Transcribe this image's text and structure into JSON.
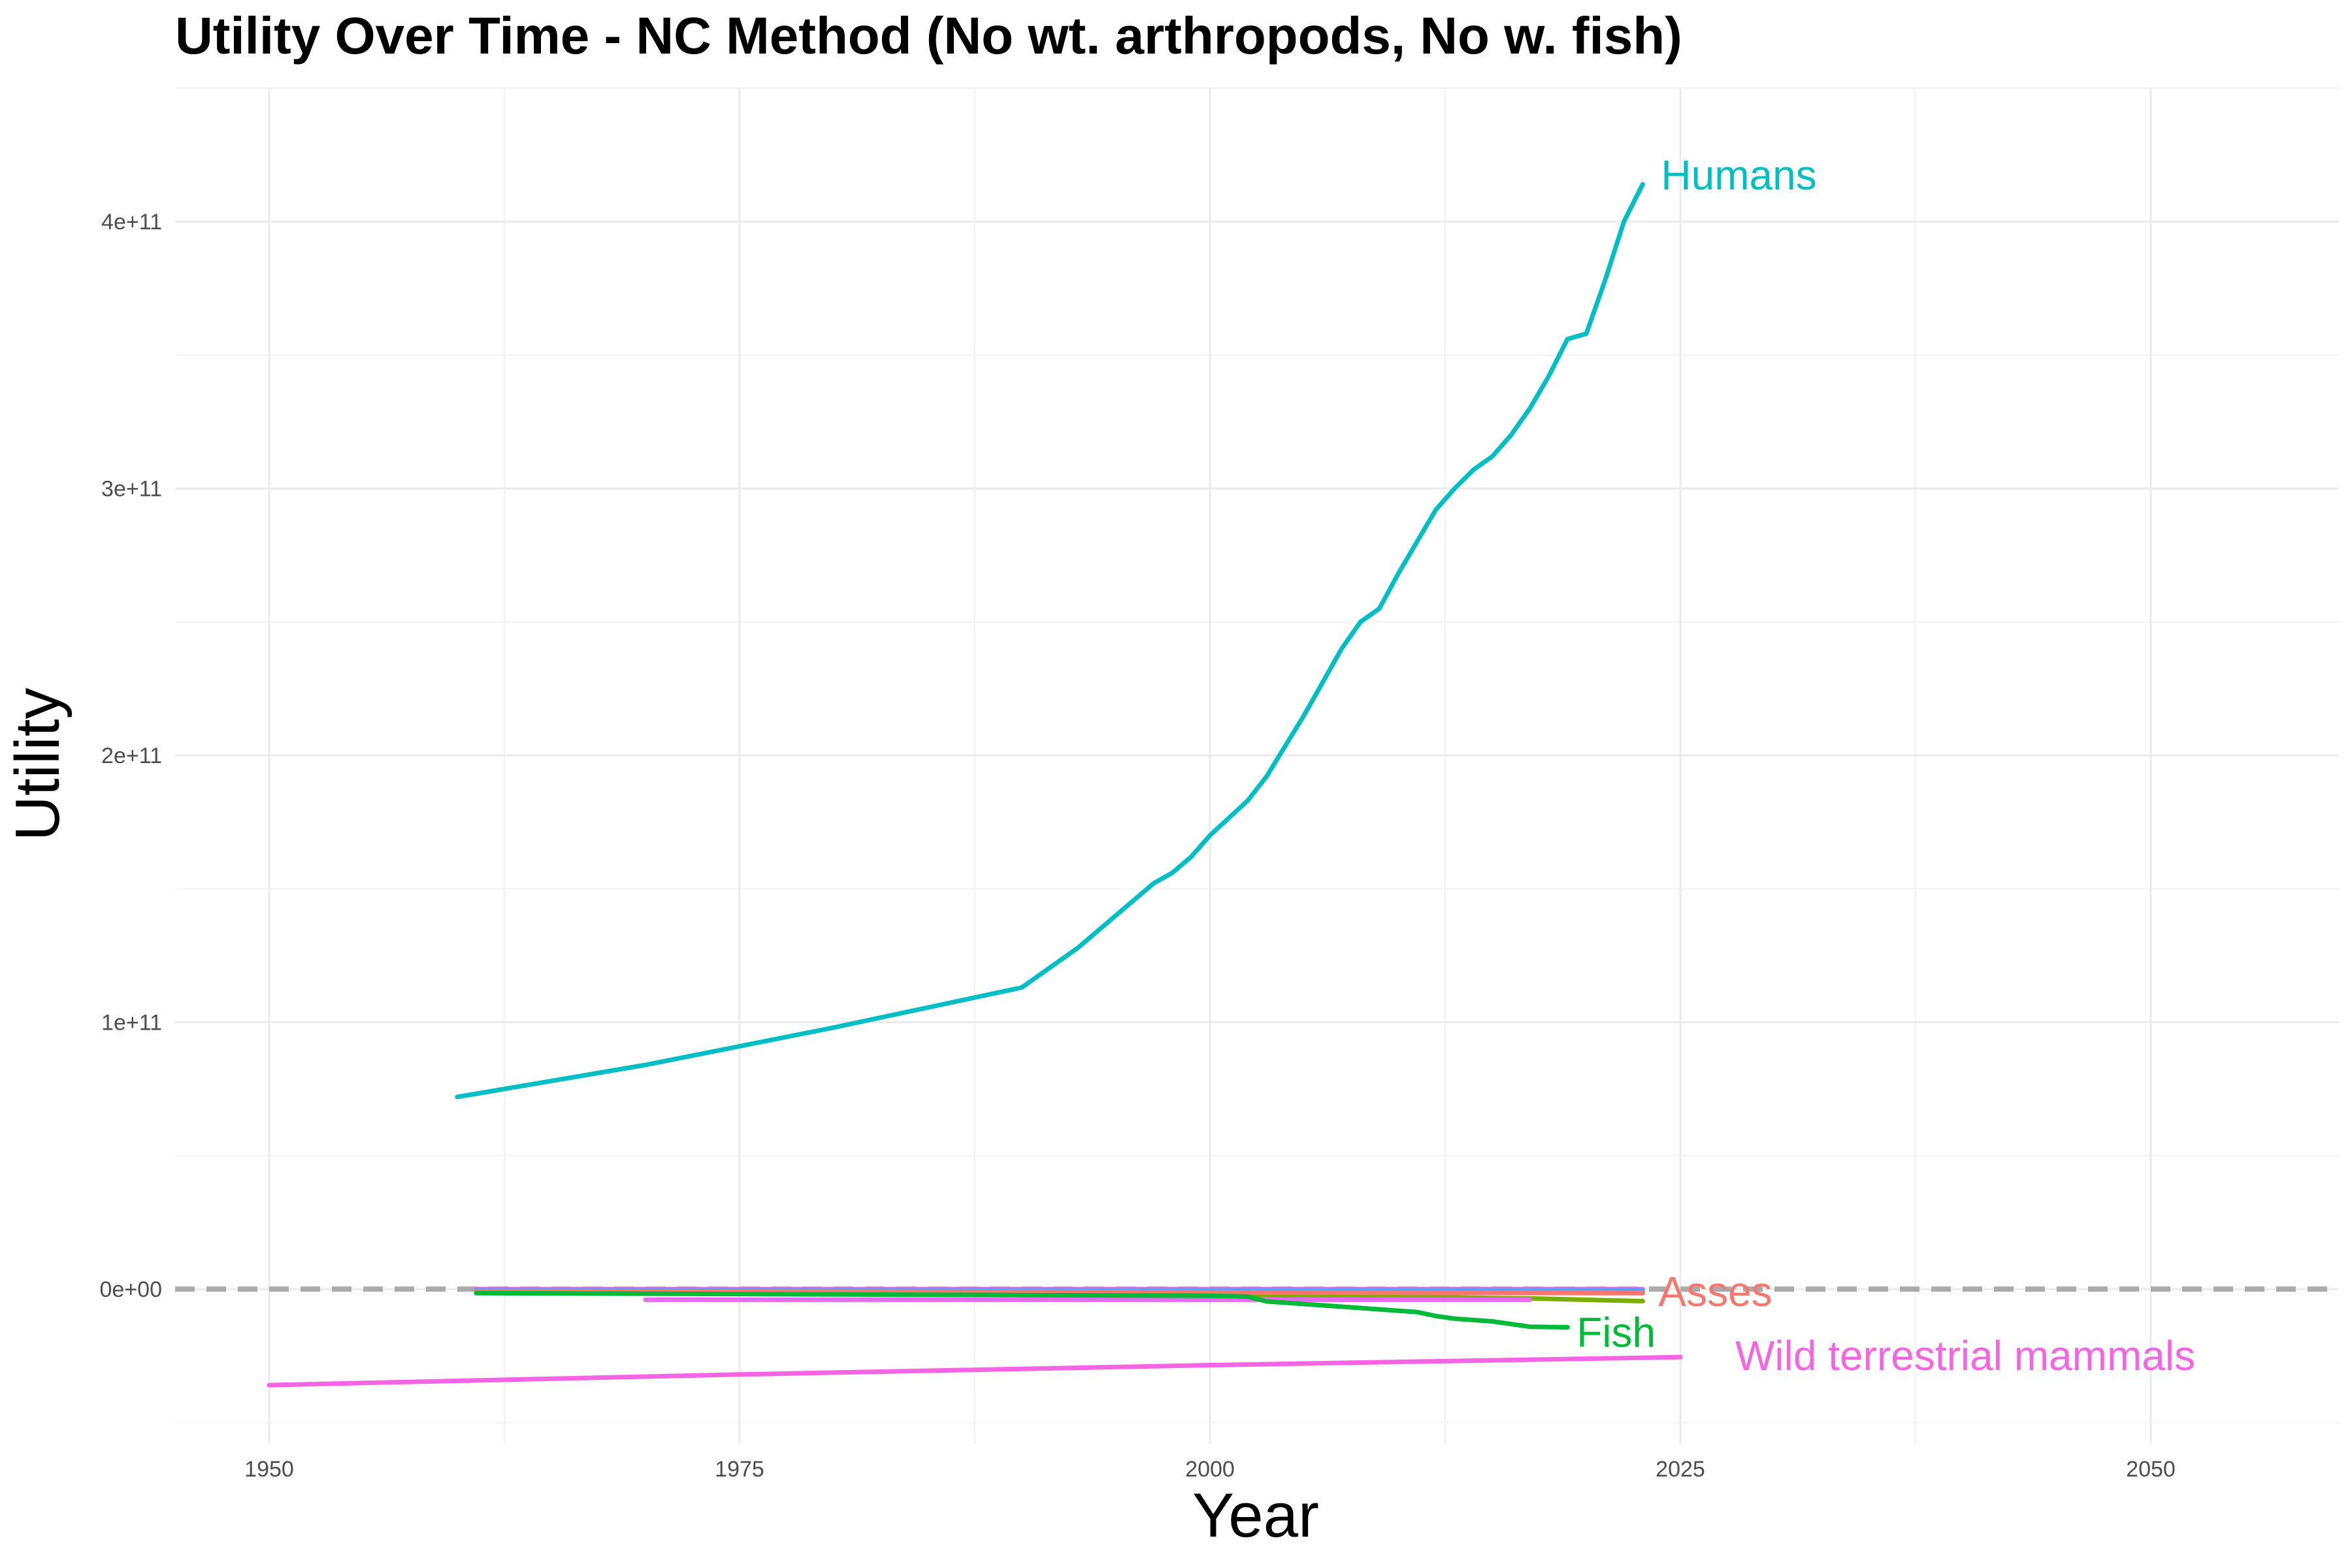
{
  "chart_data": {
    "type": "line",
    "title": "Utility Over Time - NC Method (No wt. arthropods, No w. fish)",
    "xlabel": "Year",
    "ylabel": "Utility",
    "xlim": [
      1945,
      2060
    ],
    "ylim": [
      -58000000000.0,
      450000000000.0
    ],
    "x_ticks": [
      1950,
      1975,
      2000,
      2025,
      2050
    ],
    "x_tick_labels": [
      "1950",
      "1975",
      "2000",
      "2025",
      "2050"
    ],
    "y_ticks": [
      0,
      100000000000.0,
      200000000000.0,
      300000000000.0,
      400000000000.0
    ],
    "y_tick_labels": [
      "0e+00",
      "1e+11",
      "2e+11",
      "3e+11",
      "4e+11"
    ],
    "grid": true,
    "legend": "none (direct labels at line ends)",
    "reference_line": {
      "y": 0,
      "style": "dashed",
      "color": "#aaaaaa"
    },
    "series": [
      {
        "name": "Humans",
        "color": "#00bfc4",
        "label_position": "end",
        "x": [
          1960,
          1970,
          1980,
          1990,
          1993,
          1995,
          1997,
          1998,
          1999,
          2000,
          2002,
          2003,
          2005,
          2007,
          2008,
          2009,
          2010,
          2011,
          2012,
          2013,
          2014,
          2015,
          2016,
          2017,
          2018,
          2019,
          2020,
          2021,
          2022,
          2023
        ],
        "y": [
          72000000000.0,
          84000000000.0,
          98000000000.0,
          113000000000.0,
          128000000000.0,
          140000000000.0,
          152000000000.0,
          156000000000.0,
          162000000000.0,
          170000000000.0,
          183000000000.0,
          192000000000.0,
          215000000000.0,
          240000000000.0,
          250000000000.0,
          255000000000.0,
          268000000000.0,
          280000000000.0,
          292000000000.0,
          300000000000.0,
          307000000000.0,
          312000000000.0,
          320000000000.0,
          330000000000.0,
          342000000000.0,
          356000000000.0,
          358000000000.0,
          378000000000.0,
          400000000000.0,
          414000000000.0
        ]
      },
      {
        "name": "Asses",
        "color": "#f8766d",
        "label_position": "end",
        "x": [
          1961,
          1980,
          2000,
          2010,
          2023
        ],
        "y": [
          -1000000000.0,
          -1100000000.0,
          -1300000000.0,
          -1400000000.0,
          -1500000000.0
        ]
      },
      {
        "name": "Fish",
        "color": "#00ba38",
        "label_position": "end",
        "x": [
          1961,
          1980,
          2000,
          2002,
          2003,
          2005,
          2007,
          2009,
          2011,
          2012,
          2013,
          2015,
          2017,
          2019
        ],
        "y": [
          -1500000000.0,
          -2000000000.0,
          -2500000000.0,
          -2800000000.0,
          -4600000000.0,
          -5600000000.0,
          -6600000000.0,
          -7600000000.0,
          -8600000000.0,
          -10100000000.0,
          -11100000000.0,
          -12100000000.0,
          -14100000000.0,
          -14300000000.0
        ]
      },
      {
        "name": "Wild terrestrial mammals",
        "color": "#f564e3",
        "label_position": "end",
        "x": [
          1950,
          1975,
          2000,
          2025
        ],
        "y": [
          -36000000000.0,
          -32000000000.0,
          -28500000000.0,
          -25500000000.0
        ]
      }
    ],
    "unlabeled_series": [
      {
        "color": "#ff5fd7",
        "x": [
          1961,
          2023
        ],
        "y": [
          0,
          0
        ]
      },
      {
        "color": "#7cae00",
        "x": [
          1961,
          2000,
          2017,
          2023
        ],
        "y": [
          -1000000000.0,
          -2000000000.0,
          -3500000000.0,
          -4500000000.0
        ]
      },
      {
        "color": "#e76bf3",
        "x": [
          1970,
          2000,
          2017
        ],
        "y": [
          -4000000000.0,
          -4000000000.0,
          -4000000000.0
        ]
      },
      {
        "color": "#c77cff",
        "x": [
          1961,
          2023
        ],
        "y": [
          -500000000.0,
          -500000000.0
        ]
      },
      {
        "color": "#619cff",
        "x": [
          1961,
          2023
        ],
        "y": [
          -300000000.0,
          -300000000.0
        ]
      }
    ]
  }
}
